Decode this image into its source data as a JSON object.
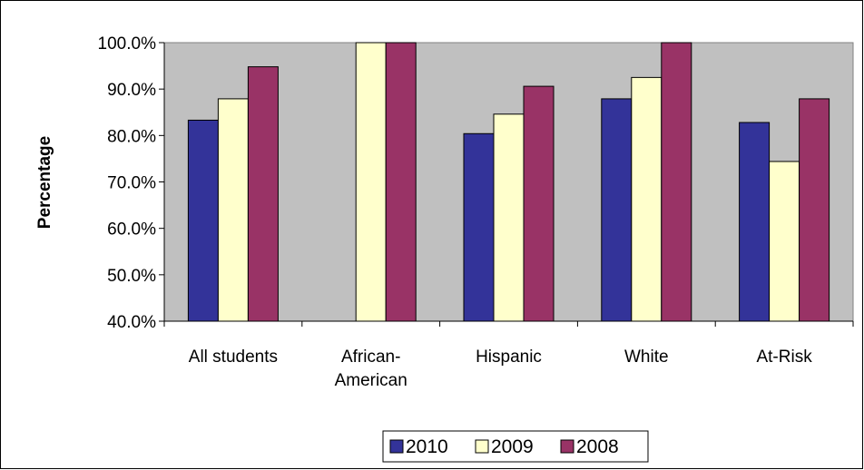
{
  "chart_data": {
    "type": "bar",
    "title": "",
    "xlabel": "",
    "ylabel": "Percentage",
    "ylim": [
      40,
      100
    ],
    "yticks": [
      "40.0%",
      "50.0%",
      "60.0%",
      "70.0%",
      "80.0%",
      "90.0%",
      "100.0%"
    ],
    "ytick_values": [
      40,
      50,
      60,
      70,
      80,
      90,
      100
    ],
    "categories": [
      [
        "All students"
      ],
      [
        "African-",
        "American"
      ],
      [
        "Hispanic"
      ],
      [
        "White"
      ],
      [
        "At-Risk"
      ]
    ],
    "series": [
      {
        "name": "2010",
        "color": "#333399",
        "values": [
          83.3,
          null,
          80.4,
          87.9,
          82.8
        ]
      },
      {
        "name": "2009",
        "color": "#FFFFCC",
        "values": [
          87.9,
          100,
          84.6,
          92.5,
          74.4
        ]
      },
      {
        "name": "2008",
        "color": "#993366",
        "values": [
          94.8,
          100,
          90.6,
          100,
          87.9
        ]
      }
    ],
    "grid": false,
    "plot_background": "#C0C0C0",
    "legend_position": "bottom"
  }
}
